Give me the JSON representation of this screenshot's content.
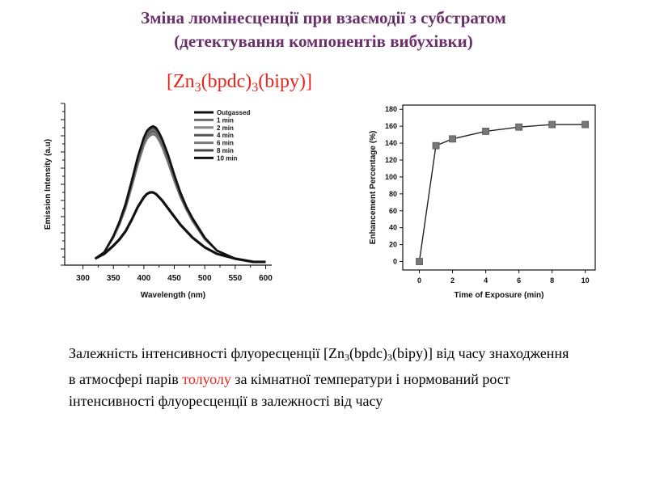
{
  "title": {
    "line1": "Зміна люмінесценції при взаємодії з субстратом",
    "line2": "(детектування компонентів вибухівки)"
  },
  "formula": {
    "prefix": "[Zn",
    "sub1": "3",
    "mid": "(bpdc)",
    "sub2": "3",
    "suffix": "(bipy)]"
  },
  "caption": {
    "p1": "Залежність інтенсивності флуоресценції [Zn",
    "s1": "3",
    "p2": "(bpdc)",
    "s2": "3",
    "p3": "(bipy)] від часу знаходження в атмосфері парів ",
    "highlight": "толуолу",
    "p4": " за кімнатної температури і нормований рост інтенсивності флуоресценції в залежності від часу"
  },
  "chart_data": [
    {
      "type": "line",
      "xlabel": "Wavelength (nm)",
      "ylabel": "Emission Intensity (a.u)",
      "xlim": [
        270,
        610
      ],
      "ylim": [
        0,
        1.0
      ],
      "x_ticks": [
        300,
        350,
        400,
        450,
        500,
        550,
        600
      ],
      "y_ticks_labeled": false,
      "legend_position": "top-right",
      "x": [
        320,
        335,
        350,
        360,
        370,
        380,
        390,
        400,
        405,
        410,
        415,
        420,
        425,
        430,
        440,
        450,
        460,
        470,
        480,
        500,
        520,
        550,
        580,
        600
      ],
      "series": [
        {
          "name": "Outgassed",
          "color": "#111111",
          "width": 3.2,
          "values": [
            0.04,
            0.07,
            0.12,
            0.16,
            0.21,
            0.28,
            0.36,
            0.42,
            0.44,
            0.45,
            0.45,
            0.44,
            0.42,
            0.4,
            0.35,
            0.3,
            0.25,
            0.21,
            0.17,
            0.11,
            0.07,
            0.04,
            0.02,
            0.02
          ]
        },
        {
          "name": "1 min",
          "color": "#6b6b6b",
          "width": 2.2,
          "values": [
            0.04,
            0.08,
            0.17,
            0.25,
            0.35,
            0.48,
            0.62,
            0.74,
            0.78,
            0.8,
            0.81,
            0.8,
            0.77,
            0.73,
            0.63,
            0.52,
            0.42,
            0.34,
            0.27,
            0.16,
            0.09,
            0.04,
            0.02,
            0.02
          ]
        },
        {
          "name": "2 min",
          "color": "#8a8a8a",
          "width": 2.2,
          "values": [
            0.04,
            0.08,
            0.17,
            0.25,
            0.36,
            0.49,
            0.63,
            0.75,
            0.79,
            0.81,
            0.82,
            0.81,
            0.78,
            0.74,
            0.64,
            0.53,
            0.43,
            0.35,
            0.27,
            0.16,
            0.09,
            0.04,
            0.02,
            0.02
          ]
        },
        {
          "name": "4 min",
          "color": "#555555",
          "width": 2.2,
          "values": [
            0.04,
            0.08,
            0.17,
            0.26,
            0.36,
            0.5,
            0.64,
            0.76,
            0.8,
            0.82,
            0.83,
            0.82,
            0.79,
            0.75,
            0.65,
            0.54,
            0.43,
            0.35,
            0.28,
            0.16,
            0.09,
            0.04,
            0.02,
            0.02
          ]
        },
        {
          "name": "6 min",
          "color": "#7a7a7a",
          "width": 2.2,
          "values": [
            0.04,
            0.08,
            0.18,
            0.26,
            0.37,
            0.51,
            0.65,
            0.77,
            0.81,
            0.83,
            0.84,
            0.83,
            0.8,
            0.76,
            0.66,
            0.55,
            0.44,
            0.36,
            0.28,
            0.17,
            0.09,
            0.04,
            0.02,
            0.02
          ]
        },
        {
          "name": "8 min",
          "color": "#444444",
          "width": 2.2,
          "values": [
            0.04,
            0.08,
            0.18,
            0.26,
            0.37,
            0.51,
            0.66,
            0.78,
            0.82,
            0.84,
            0.85,
            0.84,
            0.81,
            0.77,
            0.67,
            0.55,
            0.44,
            0.36,
            0.28,
            0.17,
            0.09,
            0.04,
            0.02,
            0.02
          ]
        },
        {
          "name": "10 min",
          "color": "#111111",
          "width": 2.6,
          "values": [
            0.04,
            0.08,
            0.18,
            0.27,
            0.38,
            0.52,
            0.67,
            0.79,
            0.83,
            0.85,
            0.86,
            0.85,
            0.82,
            0.78,
            0.68,
            0.56,
            0.45,
            0.36,
            0.29,
            0.17,
            0.09,
            0.04,
            0.02,
            0.02
          ]
        }
      ]
    },
    {
      "type": "line",
      "xlabel": "Time of Exposure (min)",
      "ylabel": "Enhancement Percentage (%)",
      "xlim": [
        -1,
        10.6
      ],
      "ylim": [
        -10,
        185
      ],
      "x_ticks": [
        0,
        2,
        4,
        6,
        8,
        10
      ],
      "y_ticks": [
        0,
        20,
        40,
        60,
        80,
        100,
        120,
        140,
        160,
        180
      ],
      "marker": "square",
      "color": "#222222",
      "marker_color": "#777777",
      "x": [
        0,
        1,
        2,
        4,
        6,
        8,
        10
      ],
      "values": [
        0,
        137,
        145,
        154,
        159,
        162,
        162
      ]
    }
  ]
}
